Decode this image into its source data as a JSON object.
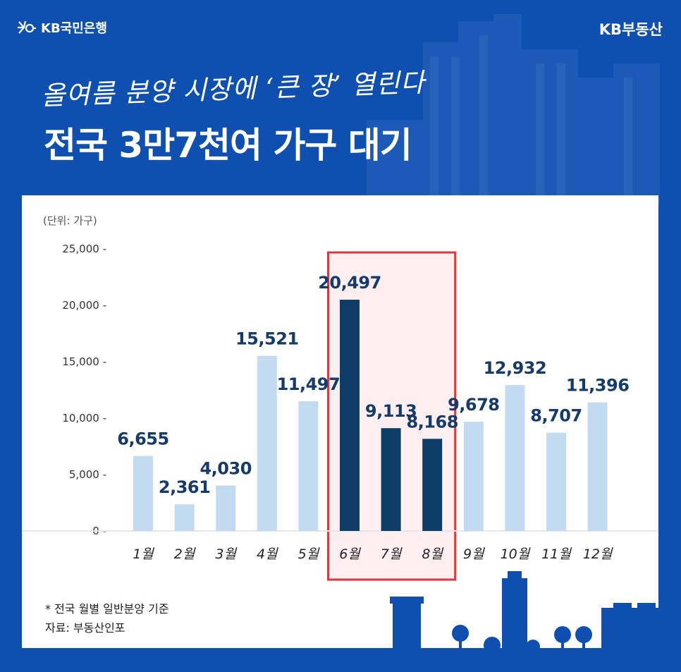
{
  "brand": {
    "bank": "KB국민은행",
    "estate": "KB부동산"
  },
  "subtitle": "올여름 분양 시장에 ‘큰 장’ 열린다",
  "title": "전국 3만7천여 가구 대기",
  "unit_label": "(단위: 가구)",
  "footnote": {
    "line1": "* 전국 월별 일반분양 기준",
    "line2": "자료: 부동산인포"
  },
  "colors": {
    "background": "#0e4fb0",
    "bar_light": "#c3dbf1",
    "bar_dark": "#0d3c66",
    "highlight_fill": "#fdeff0",
    "highlight_border": "#d9393f",
    "value_label": "#163a6a"
  },
  "chart_data": {
    "type": "bar",
    "categories": [
      "1월",
      "2월",
      "3월",
      "4월",
      "5월",
      "6월",
      "7월",
      "8월",
      "9월",
      "10월",
      "11월",
      "12월"
    ],
    "values": [
      6655,
      2361,
      4030,
      15521,
      11497,
      20497,
      9113,
      8168,
      9678,
      12932,
      8707,
      11396
    ],
    "value_labels": [
      "6,655",
      "2,361",
      "4,030",
      "15,521",
      "11,497",
      "20,497",
      "9,113",
      "8,168",
      "9,678",
      "12,932",
      "8,707",
      "11,396"
    ],
    "highlighted_categories": [
      "6월",
      "7월",
      "8월"
    ],
    "ylim": [
      0,
      25000
    ],
    "yticks": [
      0,
      5000,
      10000,
      15000,
      20000,
      25000
    ],
    "ytick_labels": [
      "0 -",
      "5,000 -",
      "10,000 -",
      "15,000 -",
      "20,000 -",
      "25,000 -"
    ],
    "grid": false
  }
}
